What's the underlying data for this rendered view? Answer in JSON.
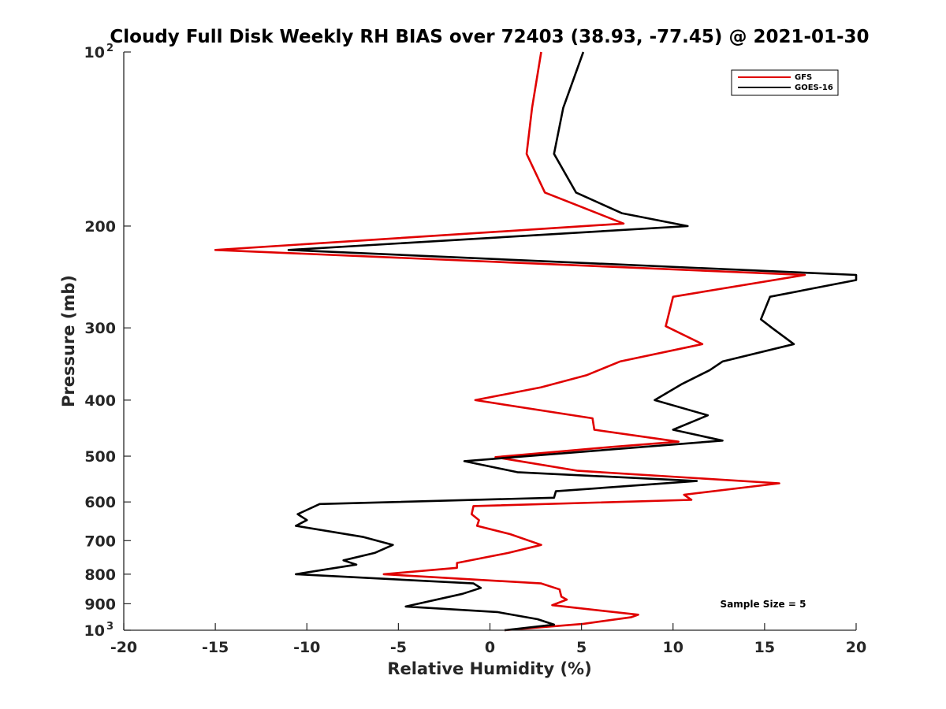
{
  "chart_data": {
    "type": "line",
    "title": "Cloudy Full Disk Weekly RH BIAS over 72403 (38.93, -77.45) @ 2021-01-30",
    "xlabel": "Relative Humidity (%)",
    "ylabel": "Pressure (mb)",
    "xlim": [
      -20,
      20
    ],
    "ylim": [
      100,
      1000
    ],
    "y_scale": "log",
    "y_reversed": true,
    "grid": false,
    "legend_position": "top-right",
    "x_ticks": [
      "-20",
      "-15",
      "-10",
      "-5",
      "0",
      "5",
      "10",
      "15",
      "20"
    ],
    "y_ticks": [
      {
        "value": 100,
        "base": "10",
        "exp": "2"
      },
      {
        "value": 200,
        "label": "200"
      },
      {
        "value": 300,
        "label": "300"
      },
      {
        "value": 400,
        "label": "400"
      },
      {
        "value": 500,
        "label": "500"
      },
      {
        "value": 600,
        "label": "600"
      },
      {
        "value": 700,
        "label": "700"
      },
      {
        "value": 800,
        "label": "800"
      },
      {
        "value": 900,
        "label": "900"
      },
      {
        "value": 1000,
        "base": "10",
        "exp": "3"
      }
    ],
    "annotation": "Sample Size = 5",
    "series": [
      {
        "name": "GFS",
        "color": "#e00000",
        "points": [
          [
            2.8,
            100
          ],
          [
            2.3,
            125
          ],
          [
            2.0,
            150
          ],
          [
            3.0,
            175
          ],
          [
            7.3,
            198
          ],
          [
            -15.0,
            220
          ],
          [
            17.2,
            243
          ],
          [
            10.0,
            265
          ],
          [
            9.6,
            298
          ],
          [
            11.6,
            320
          ],
          [
            7.1,
            343
          ],
          [
            5.3,
            362
          ],
          [
            2.8,
            380
          ],
          [
            -0.8,
            400
          ],
          [
            5.6,
            430
          ],
          [
            5.7,
            450
          ],
          [
            10.3,
            472
          ],
          [
            6.6,
            482
          ],
          [
            0.3,
            502
          ],
          [
            4.8,
            530
          ],
          [
            15.8,
            557
          ],
          [
            10.6,
            583
          ],
          [
            11.0,
            595
          ],
          [
            -0.9,
            610
          ],
          [
            -1.0,
            630
          ],
          [
            -0.6,
            645
          ],
          [
            -0.7,
            660
          ],
          [
            1.1,
            682
          ],
          [
            2.8,
            712
          ],
          [
            1.0,
            735
          ],
          [
            -1.8,
            765
          ],
          [
            -1.8,
            780
          ],
          [
            -5.8,
            800
          ],
          [
            2.8,
            830
          ],
          [
            3.8,
            850
          ],
          [
            3.9,
            875
          ],
          [
            4.2,
            885
          ],
          [
            3.4,
            905
          ],
          [
            8.1,
            940
          ],
          [
            7.7,
            950
          ],
          [
            5.1,
            975
          ],
          [
            0.8,
            1000
          ]
        ]
      },
      {
        "name": "GOES-16",
        "color": "#000000",
        "points": [
          [
            5.1,
            100
          ],
          [
            4.0,
            125
          ],
          [
            3.5,
            150
          ],
          [
            4.7,
            175
          ],
          [
            7.2,
            190
          ],
          [
            10.8,
            200
          ],
          [
            -11.0,
            220
          ],
          [
            20.0,
            243
          ],
          [
            20.0,
            248
          ],
          [
            15.3,
            265
          ],
          [
            14.8,
            290
          ],
          [
            15.4,
            300
          ],
          [
            16.6,
            320
          ],
          [
            12.7,
            343
          ],
          [
            12.0,
            355
          ],
          [
            10.5,
            375
          ],
          [
            9.0,
            400
          ],
          [
            11.9,
            425
          ],
          [
            10.0,
            450
          ],
          [
            12.7,
            470
          ],
          [
            -1.4,
            510
          ],
          [
            1.5,
            533
          ],
          [
            11.3,
            552
          ],
          [
            3.6,
            575
          ],
          [
            3.5,
            590
          ],
          [
            -9.3,
            605
          ],
          [
            -10.5,
            630
          ],
          [
            -10.0,
            645
          ],
          [
            -10.6,
            660
          ],
          [
            -6.9,
            690
          ],
          [
            -5.3,
            712
          ],
          [
            -6.3,
            735
          ],
          [
            -8.0,
            757
          ],
          [
            -7.3,
            770
          ],
          [
            -10.6,
            800
          ],
          [
            -0.9,
            830
          ],
          [
            -0.5,
            845
          ],
          [
            -1.5,
            865
          ],
          [
            -4.6,
            910
          ],
          [
            0.4,
            930
          ],
          [
            2.6,
            957
          ],
          [
            3.5,
            978
          ],
          [
            0.8,
            1000
          ]
        ]
      }
    ]
  }
}
